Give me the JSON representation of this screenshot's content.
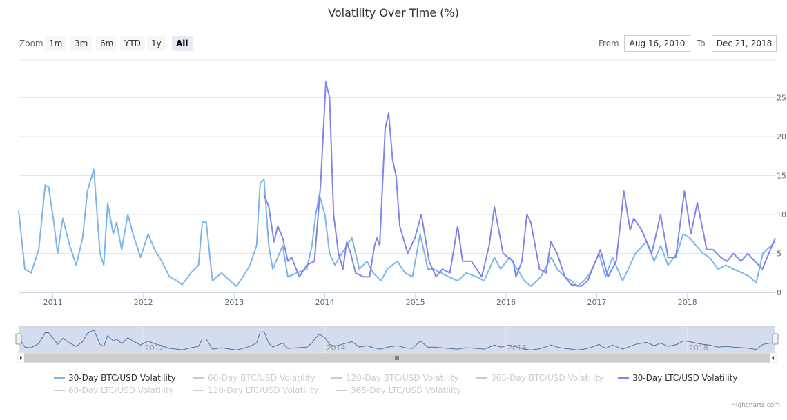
{
  "title": "Volatility Over Time (%)",
  "range_selector": {
    "zoom_label": "Zoom",
    "buttons": [
      "1m",
      "3m",
      "6m",
      "YTD",
      "1y",
      "All"
    ],
    "selected": "All",
    "from_label": "From",
    "from_value": "Aug 16, 2010",
    "to_label": "To",
    "to_value": "Dec 21, 2018"
  },
  "credits": "Highcharts.com",
  "chart_data": {
    "type": "line",
    "title": "Volatility Over Time (%)",
    "xlim": [
      "2010-08-16",
      "2018-12-21"
    ],
    "ylim": [
      0,
      30
    ],
    "yticks": [
      0,
      5,
      10,
      15,
      20,
      25
    ],
    "xticks": [
      "2011",
      "2012",
      "2013",
      "2014",
      "2015",
      "2016",
      "2017",
      "2018"
    ],
    "grid": true,
    "legend_placement": "bottom",
    "colors": {
      "btc30": "#7cb5ec",
      "ltc30": "#8085e9",
      "hidden": "#cccccc",
      "navigator_line": "#4572a7",
      "navigator_fill": "#d0d8ec"
    },
    "series": [
      {
        "name": "30-Day BTC/USD Volatility",
        "visible": true,
        "color": "#7cb5ec",
        "points": [
          [
            "2010-08-16",
            10.5
          ],
          [
            "2010-09-10",
            3
          ],
          [
            "2010-10-05",
            2.5
          ],
          [
            "2010-11-05",
            5.5
          ],
          [
            "2010-12-01",
            13.8
          ],
          [
            "2010-12-15",
            13.5
          ],
          [
            "2011-01-05",
            9
          ],
          [
            "2011-01-20",
            5
          ],
          [
            "2011-02-10",
            9.5
          ],
          [
            "2011-03-10",
            6
          ],
          [
            "2011-04-05",
            3.5
          ],
          [
            "2011-05-01",
            7
          ],
          [
            "2011-05-20",
            13
          ],
          [
            "2011-06-15",
            15.8
          ],
          [
            "2011-07-10",
            5
          ],
          [
            "2011-07-25",
            3.5
          ],
          [
            "2011-08-10",
            11.5
          ],
          [
            "2011-09-01",
            7.5
          ],
          [
            "2011-09-15",
            9
          ],
          [
            "2011-10-05",
            5.5
          ],
          [
            "2011-10-30",
            10
          ],
          [
            "2011-11-20",
            7.5
          ],
          [
            "2011-12-20",
            4.5
          ],
          [
            "2012-01-20",
            7.5
          ],
          [
            "2012-02-15",
            5.5
          ],
          [
            "2012-03-15",
            4
          ],
          [
            "2012-04-15",
            2
          ],
          [
            "2012-05-15",
            1.5
          ],
          [
            "2012-06-05",
            1
          ],
          [
            "2012-07-10",
            2.5
          ],
          [
            "2012-08-10",
            3.5
          ],
          [
            "2012-08-25",
            9
          ],
          [
            "2012-09-10",
            9
          ],
          [
            "2012-10-05",
            1.5
          ],
          [
            "2012-11-10",
            2.5
          ],
          [
            "2012-12-15",
            1.5
          ],
          [
            "2013-01-10",
            0.8
          ],
          [
            "2013-02-15",
            2.5
          ],
          [
            "2013-03-05",
            3.5
          ],
          [
            "2013-04-01",
            6
          ],
          [
            "2013-04-15",
            14
          ],
          [
            "2013-05-01",
            14.5
          ],
          [
            "2013-05-20",
            6
          ],
          [
            "2013-06-05",
            3
          ],
          [
            "2013-07-15",
            6
          ],
          [
            "2013-08-05",
            2
          ],
          [
            "2013-09-10",
            2.5
          ],
          [
            "2013-10-20",
            3
          ],
          [
            "2013-11-10",
            6
          ],
          [
            "2013-11-25",
            10
          ],
          [
            "2013-12-10",
            12.5
          ],
          [
            "2014-01-01",
            10
          ],
          [
            "2014-01-20",
            5
          ],
          [
            "2014-02-10",
            3.5
          ],
          [
            "2014-03-10",
            5
          ],
          [
            "2014-04-20",
            7
          ],
          [
            "2014-05-20",
            3
          ],
          [
            "2014-06-20",
            4
          ],
          [
            "2014-07-15",
            2.5
          ],
          [
            "2014-08-15",
            1.5
          ],
          [
            "2014-09-10",
            3
          ],
          [
            "2014-10-20",
            4
          ],
          [
            "2014-11-20",
            2.5
          ],
          [
            "2014-12-20",
            2
          ],
          [
            "2015-01-20",
            7.5
          ],
          [
            "2015-02-20",
            3
          ],
          [
            "2015-03-15",
            3
          ],
          [
            "2015-04-15",
            2.5
          ],
          [
            "2015-05-15",
            2
          ],
          [
            "2015-06-20",
            1.5
          ],
          [
            "2015-07-25",
            2.5
          ],
          [
            "2015-09-05",
            2
          ],
          [
            "2015-10-05",
            1.5
          ],
          [
            "2015-11-15",
            4.5
          ],
          [
            "2015-12-10",
            3
          ],
          [
            "2016-01-15",
            4.5
          ],
          [
            "2016-02-15",
            3
          ],
          [
            "2016-03-15",
            1.5
          ],
          [
            "2016-04-10",
            0.8
          ],
          [
            "2016-05-05",
            1.5
          ],
          [
            "2016-05-20",
            2
          ],
          [
            "2016-07-01",
            4.5
          ],
          [
            "2016-07-25",
            3
          ],
          [
            "2016-08-25",
            2
          ],
          [
            "2016-09-20",
            1.5
          ],
          [
            "2016-10-15",
            0.8
          ],
          [
            "2016-11-10",
            1.5
          ],
          [
            "2016-12-05",
            2.5
          ],
          [
            "2017-01-10",
            5
          ],
          [
            "2017-02-05",
            2
          ],
          [
            "2017-03-05",
            4.5
          ],
          [
            "2017-04-15",
            1.5
          ],
          [
            "2017-05-15",
            3.5
          ],
          [
            "2017-06-05",
            5
          ],
          [
            "2017-07-20",
            6.5
          ],
          [
            "2017-08-20",
            4
          ],
          [
            "2017-09-15",
            6
          ],
          [
            "2017-10-15",
            3.5
          ],
          [
            "2017-11-20",
            5
          ],
          [
            "2017-12-15",
            7.5
          ],
          [
            "2018-01-10",
            7
          ],
          [
            "2018-02-05",
            6
          ],
          [
            "2018-03-05",
            5
          ],
          [
            "2018-03-30",
            4.5
          ],
          [
            "2018-05-05",
            3
          ],
          [
            "2018-06-05",
            3.5
          ],
          [
            "2018-07-05",
            3
          ],
          [
            "2018-08-10",
            2.5
          ],
          [
            "2018-09-10",
            2
          ],
          [
            "2018-10-05",
            1.2
          ],
          [
            "2018-11-01",
            5
          ],
          [
            "2018-12-21",
            6.5
          ]
        ]
      },
      {
        "name": "60-Day BTC/USD Volatility",
        "visible": false,
        "color": "#cccccc",
        "points": []
      },
      {
        "name": "120-Day BTC/USD Volatility",
        "visible": false,
        "color": "#cccccc",
        "points": []
      },
      {
        "name": "365-Day BTC/USD Volatility",
        "visible": false,
        "color": "#cccccc",
        "points": []
      },
      {
        "name": "30-Day LTC/USD Volatility",
        "visible": true,
        "color": "#8085e9",
        "points": [
          [
            "2013-05-01",
            12.5
          ],
          [
            "2013-05-20",
            11
          ],
          [
            "2013-06-10",
            6.5
          ],
          [
            "2013-06-25",
            8.5
          ],
          [
            "2013-07-15",
            7
          ],
          [
            "2013-08-05",
            4
          ],
          [
            "2013-08-20",
            4.5
          ],
          [
            "2013-09-20",
            2
          ],
          [
            "2013-10-20",
            3.5
          ],
          [
            "2013-11-20",
            4
          ],
          [
            "2013-12-15",
            14
          ],
          [
            "2014-01-05",
            27
          ],
          [
            "2014-01-20",
            25
          ],
          [
            "2014-02-05",
            10
          ],
          [
            "2014-02-25",
            5
          ],
          [
            "2014-03-15",
            3
          ],
          [
            "2014-03-30",
            6.5
          ],
          [
            "2014-04-15",
            5
          ],
          [
            "2014-05-05",
            2.5
          ],
          [
            "2014-06-05",
            2
          ],
          [
            "2014-06-30",
            2
          ],
          [
            "2014-07-20",
            6
          ],
          [
            "2014-07-30",
            7
          ],
          [
            "2014-08-10",
            6
          ],
          [
            "2014-09-01",
            21
          ],
          [
            "2014-09-15",
            23
          ],
          [
            "2014-10-01",
            17
          ],
          [
            "2014-10-15",
            15
          ],
          [
            "2014-10-30",
            8.5
          ],
          [
            "2014-12-01",
            5
          ],
          [
            "2014-12-30",
            7
          ],
          [
            "2015-01-25",
            10
          ],
          [
            "2015-02-25",
            4
          ],
          [
            "2015-03-25",
            2
          ],
          [
            "2015-04-20",
            3
          ],
          [
            "2015-05-20",
            2.5
          ],
          [
            "2015-06-20",
            8.5
          ],
          [
            "2015-07-10",
            4
          ],
          [
            "2015-08-15",
            4
          ],
          [
            "2015-09-25",
            2
          ],
          [
            "2015-10-25",
            6
          ],
          [
            "2015-11-15",
            11
          ],
          [
            "2015-12-20",
            5
          ],
          [
            "2016-01-30",
            4
          ],
          [
            "2016-02-10",
            2
          ],
          [
            "2016-03-05",
            4
          ],
          [
            "2016-03-25",
            10
          ],
          [
            "2016-04-10",
            9
          ],
          [
            "2016-05-15",
            3
          ],
          [
            "2016-06-10",
            2.5
          ],
          [
            "2016-06-30",
            6.5
          ],
          [
            "2016-07-25",
            5
          ],
          [
            "2016-08-25",
            2
          ],
          [
            "2016-09-20",
            1
          ],
          [
            "2016-10-30",
            0.8
          ],
          [
            "2016-11-25",
            1.5
          ],
          [
            "2017-01-15",
            5.5
          ],
          [
            "2017-02-15",
            2
          ],
          [
            "2017-03-20",
            4
          ],
          [
            "2017-04-20",
            13
          ],
          [
            "2017-05-15",
            8
          ],
          [
            "2017-05-30",
            9.5
          ],
          [
            "2017-07-01",
            8
          ],
          [
            "2017-08-10",
            5
          ],
          [
            "2017-09-15",
            10
          ],
          [
            "2017-10-15",
            4.5
          ],
          [
            "2017-11-15",
            4.5
          ],
          [
            "2017-12-20",
            13
          ],
          [
            "2018-01-15",
            7.5
          ],
          [
            "2018-02-10",
            11.5
          ],
          [
            "2018-03-20",
            5.5
          ],
          [
            "2018-04-15",
            5.5
          ],
          [
            "2018-05-15",
            4.5
          ],
          [
            "2018-06-10",
            4
          ],
          [
            "2018-07-05",
            5
          ],
          [
            "2018-08-05",
            4
          ],
          [
            "2018-09-01",
            5
          ],
          [
            "2018-09-30",
            4
          ],
          [
            "2018-10-30",
            3
          ],
          [
            "2018-12-21",
            7
          ]
        ]
      },
      {
        "name": "60-Day LTC/USD Volatility",
        "visible": false,
        "color": "#cccccc",
        "points": []
      },
      {
        "name": "120-Day LTC/USD Volatility",
        "visible": false,
        "color": "#cccccc",
        "points": []
      },
      {
        "name": "365-Day LTC/USD Volatility",
        "visible": false,
        "color": "#cccccc",
        "points": []
      }
    ],
    "navigator": {
      "xticks": [
        "2012",
        "2014",
        "2016",
        "2018"
      ]
    }
  }
}
